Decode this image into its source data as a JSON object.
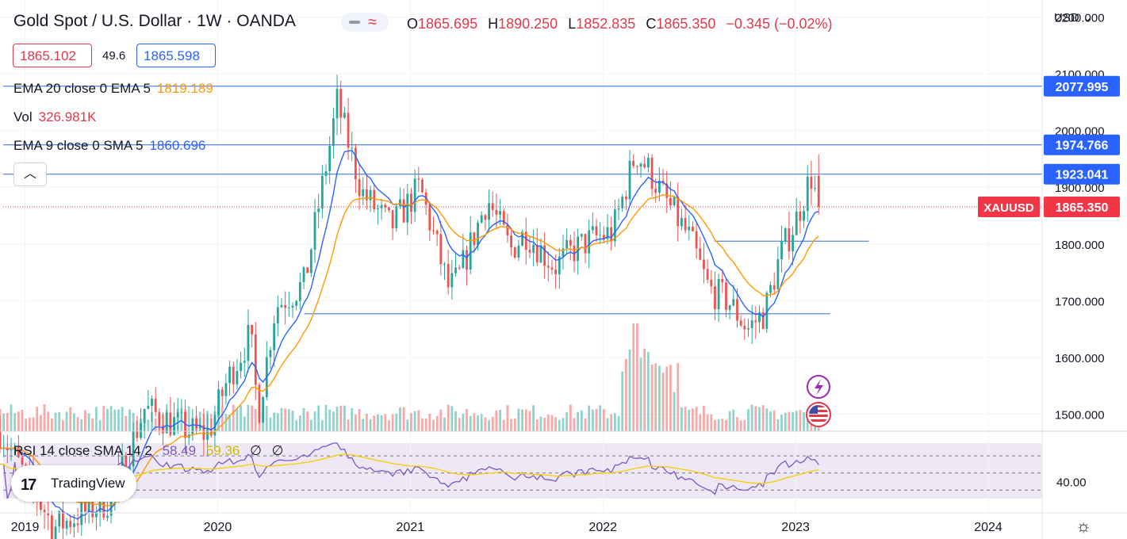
{
  "header": {
    "title": "Gold Spot / U.S. Dollar · 1W · OANDA",
    "ohlc": [
      {
        "key": "O",
        "value": "1865.695"
      },
      {
        "key": "H",
        "value": "1890.250"
      },
      {
        "key": "L",
        "value": "1852.835"
      },
      {
        "key": "C",
        "value": "1865.350"
      }
    ],
    "change": "−0.345 (−0.02%)",
    "bid": "1865.102",
    "spread": "49.6",
    "ask": "1865.598",
    "currency": "USD"
  },
  "legend": {
    "ema20": {
      "label": "EMA 20 close 0 EMA 5",
      "value": "1819.189"
    },
    "vol": {
      "label": "Vol",
      "value": "326.981K"
    },
    "ema9": {
      "label": "EMA 9 close 0 SMA 5",
      "value": "1860.696"
    },
    "rsi": {
      "label": "RSI 14 close SMA 14 2",
      "value1": "58.49",
      "value2": "59.36",
      "value3": "∅",
      "value4": "∅"
    }
  },
  "branding": "TradingView",
  "colors": {
    "up": "#26a69a",
    "down": "#ef5350",
    "ema_fast": "#2962ff",
    "ema_slow": "#ff9800",
    "rsi": "#7e57c2",
    "rsi_ma": "#f5d000",
    "hline": "#2a6ad8"
  },
  "chart_data": {
    "type": "candlestick",
    "symbol": "XAUUSD",
    "interval": "1W",
    "ylim": [
      1470,
      2230
    ],
    "y_ticks": [
      "1500.000",
      "1600.000",
      "1700.000",
      "1800.000",
      "1900.000",
      "2000.000",
      "2100.000",
      "2200.000"
    ],
    "x_ticks": [
      "2019",
      "2020",
      "2021",
      "2022",
      "2023",
      "2024"
    ],
    "x_range_years": [
      2018.87,
      2024.28
    ],
    "last_price": "1865.350",
    "horizontal_lines": [
      {
        "price": 2077.995,
        "label": "2077.995"
      },
      {
        "price": 1974.766,
        "label": "1974.766"
      },
      {
        "price": 1923.041,
        "label": "1923.041"
      }
    ],
    "trend_segments": [
      {
        "from": 2020.45,
        "to": 2023.18,
        "price": 1677
      },
      {
        "from": 2022.58,
        "to": 2023.38,
        "price": 1805
      }
    ],
    "anchors": [
      [
        2018.87,
        1470
      ],
      [
        2019.15,
        1300
      ],
      [
        2019.45,
        1350
      ],
      [
        2019.62,
        1510
      ],
      [
        2019.85,
        1470
      ],
      [
        2019.95,
        1465
      ],
      [
        2020.05,
        1560
      ],
      [
        2020.17,
        1640
      ],
      [
        2020.21,
        1500
      ],
      [
        2020.3,
        1690
      ],
      [
        2020.45,
        1730
      ],
      [
        2020.58,
        1970
      ],
      [
        2020.62,
        2050
      ],
      [
        2020.75,
        1890
      ],
      [
        2020.9,
        1830
      ],
      [
        2021.05,
        1900
      ],
      [
        2021.2,
        1720
      ],
      [
        2021.25,
        1740
      ],
      [
        2021.4,
        1880
      ],
      [
        2021.52,
        1790
      ],
      [
        2021.6,
        1820
      ],
      [
        2021.75,
        1760
      ],
      [
        2021.85,
        1790
      ],
      [
        2021.95,
        1810
      ],
      [
        2022.05,
        1820
      ],
      [
        2022.17,
        1960
      ],
      [
        2022.23,
        1935
      ],
      [
        2022.32,
        1880
      ],
      [
        2022.45,
        1810
      ],
      [
        2022.55,
        1720
      ],
      [
        2022.65,
        1700
      ],
      [
        2022.75,
        1650
      ],
      [
        2022.84,
        1680
      ],
      [
        2022.92,
        1780
      ],
      [
        2023.0,
        1840
      ],
      [
        2023.08,
        1920
      ],
      [
        2023.12,
        1865
      ]
    ],
    "volume_spikes": [
      [
        2022.17,
        1.0
      ]
    ],
    "rsi_range": [
      20,
      85
    ],
    "rsi_tick": "40.00",
    "rsi_levels": [
      70,
      50,
      30
    ]
  }
}
